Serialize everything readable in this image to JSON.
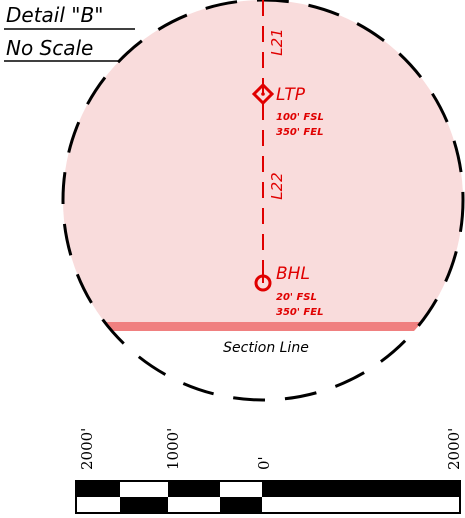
{
  "detail": {
    "title": "Detail \"B\"",
    "subtitle": "No Scale"
  },
  "wellbore": {
    "segment_upper_label": "L21",
    "segment_lower_label": "L22"
  },
  "ltp": {
    "label": "LTP",
    "line1": "100' FSL",
    "line2": "350' FEL"
  },
  "bhl": {
    "label": "BHL",
    "line1": "20' FSL",
    "line2": "350' FEL"
  },
  "section_line": {
    "label": "Section Line"
  },
  "scale_bar": {
    "labels": [
      "2000'",
      "1000'",
      "0'",
      "2000'"
    ]
  },
  "colors": {
    "circle_fill": "#f9dcdc",
    "section_band": "#f08080",
    "accent_red": "#e00000",
    "ink": "#000000"
  }
}
